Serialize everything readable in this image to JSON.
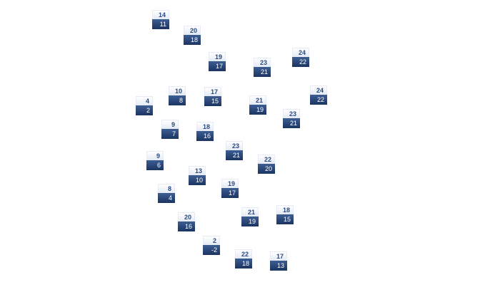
{
  "colors": {
    "high_text": "#2b4a82",
    "low_bg": "#1b3361",
    "low_text": "#ffffff"
  },
  "markers": [
    {
      "high": "14",
      "low": "11"
    },
    {
      "high": "20",
      "low": "18"
    },
    {
      "high": "19",
      "low": "17"
    },
    {
      "high": "23",
      "low": "21"
    },
    {
      "high": "24",
      "low": "22"
    },
    {
      "high": "10",
      "low": "8"
    },
    {
      "high": "17",
      "low": "15"
    },
    {
      "high": "4",
      "low": "2"
    },
    {
      "high": "21",
      "low": "19"
    },
    {
      "high": "24",
      "low": "22"
    },
    {
      "high": "23",
      "low": "21"
    },
    {
      "high": "9",
      "low": "7"
    },
    {
      "high": "18",
      "low": "16"
    },
    {
      "high": "23",
      "low": "21"
    },
    {
      "high": "9",
      "low": "6"
    },
    {
      "high": "22",
      "low": "20"
    },
    {
      "high": "13",
      "low": "10"
    },
    {
      "high": "19",
      "low": "17"
    },
    {
      "high": "8",
      "low": "4"
    },
    {
      "high": "21",
      "low": "19"
    },
    {
      "high": "18",
      "low": "15"
    },
    {
      "high": "20",
      "low": "16"
    },
    {
      "high": "2",
      "low": "-2"
    },
    {
      "high": "22",
      "low": "18"
    },
    {
      "high": "17",
      "low": "13"
    }
  ]
}
